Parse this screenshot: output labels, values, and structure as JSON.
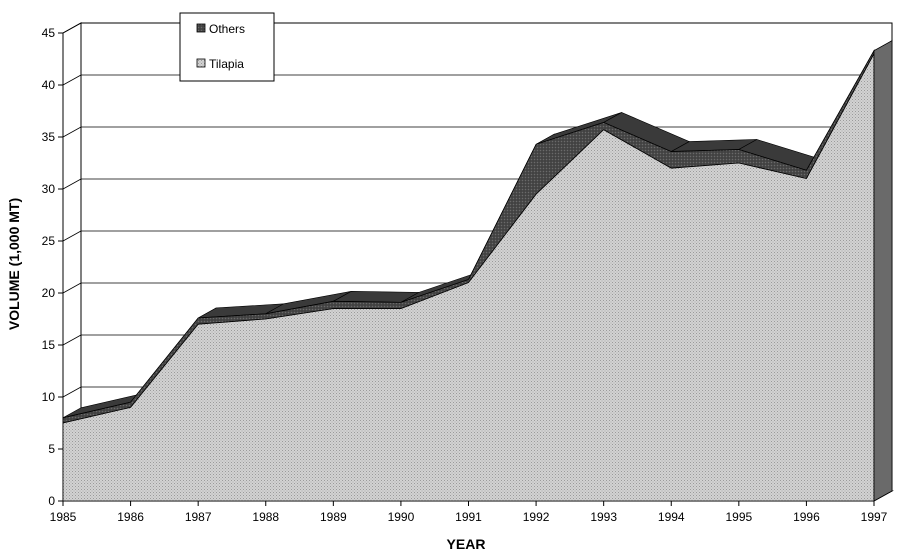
{
  "chart_data": {
    "type": "area",
    "stacked": true,
    "three_d": true,
    "xlabel": "YEAR",
    "ylabel": "VOLUME (1,000 MT)",
    "categories": [
      "1985",
      "1986",
      "1987",
      "1988",
      "1989",
      "1990",
      "1991",
      "1992",
      "1993",
      "1994",
      "1995",
      "1996",
      "1997"
    ],
    "ylim": [
      0,
      45
    ],
    "y_ticks": [
      0,
      5,
      10,
      15,
      20,
      25,
      30,
      35,
      40,
      45
    ],
    "grid": true,
    "legend_position": "top-left",
    "series": [
      {
        "name": "Tilapia",
        "values": [
          7.5,
          9.0,
          17.0,
          17.5,
          18.5,
          18.5,
          21.0,
          29.5,
          35.7,
          32.0,
          32.5,
          31.0,
          43.0
        ],
        "color": "#c4c4c4"
      },
      {
        "name": "Others",
        "values": [
          0.5,
          0.5,
          0.6,
          0.5,
          0.7,
          0.6,
          0.3,
          4.8,
          0.7,
          1.6,
          1.3,
          0.8,
          0.3
        ],
        "color": "#505050"
      }
    ]
  }
}
